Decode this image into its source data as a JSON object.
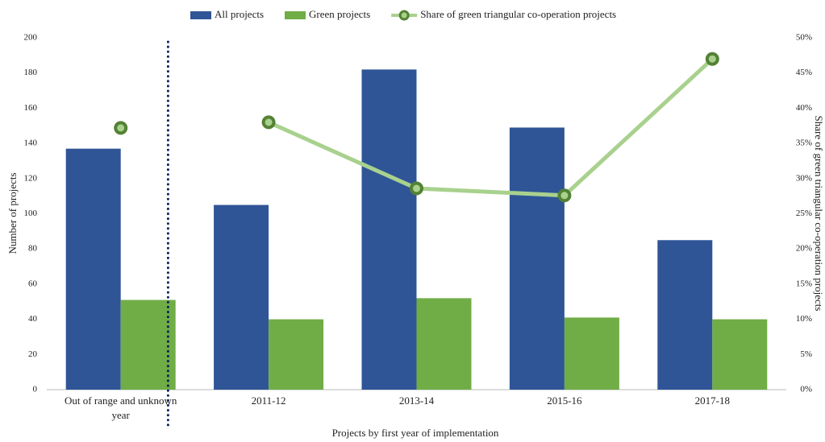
{
  "chart_data": {
    "type": "bar",
    "x_label": "Projects by first year of implementation",
    "y_label": "Number of projects",
    "y2_label": "Share of green triangular co-operation projects",
    "categories": [
      "Out of range and unknown year",
      "2011-12",
      "2013-14",
      "2015-16",
      "2017-18"
    ],
    "series": [
      {
        "name": "All projects",
        "type": "bar",
        "color": "#2f5597",
        "values": [
          137,
          105,
          182,
          149,
          85
        ]
      },
      {
        "name": "Green projects",
        "type": "bar",
        "color": "#70ad47",
        "values": [
          51,
          40,
          52,
          41,
          40
        ]
      },
      {
        "name": "Share of green triangular co-operation projects",
        "type": "line",
        "axis": "y2",
        "color": "#a9d18e",
        "marker_color": "#548235",
        "values": [
          37.2,
          38,
          28.6,
          27.6,
          47
        ]
      }
    ],
    "ylim": [
      0,
      200
    ],
    "yticks": [
      0,
      20,
      40,
      60,
      80,
      100,
      120,
      140,
      160,
      180,
      200
    ],
    "y2lim": [
      0,
      50
    ],
    "y2ticks": [
      {
        "value": 0,
        "label": "0%"
      },
      {
        "value": 5,
        "label": "5%"
      },
      {
        "value": 10,
        "label": "10%"
      },
      {
        "value": 15,
        "label": "15%"
      },
      {
        "value": 20,
        "label": "20%"
      },
      {
        "value": 25,
        "label": "25%"
      },
      {
        "value": 30,
        "label": "30%"
      },
      {
        "value": 35,
        "label": "35%"
      },
      {
        "value": 40,
        "label": "40%"
      },
      {
        "value": 45,
        "label": "45%"
      },
      {
        "value": 50,
        "label": "50%"
      }
    ],
    "divider_after_category": 0,
    "legend": "top"
  }
}
